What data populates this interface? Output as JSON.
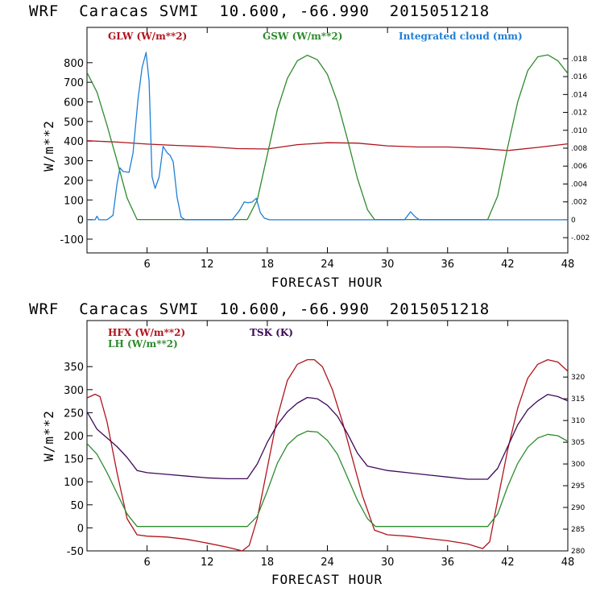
{
  "colors": {
    "glw": "#b0141c",
    "gsw": "#2e8b2e",
    "cloud": "#1f7fd4",
    "hfx": "#b0141c",
    "lh": "#2e8b2e",
    "tsk": "#3d0a5a"
  },
  "chart_data": [
    {
      "type": "line",
      "title": "WRF  Caracas SVMI  10.600, -66.990  2015051218",
      "xlabel": "FORECAST HOUR",
      "ylabel": "W/m**2",
      "xlim": [
        0,
        48
      ],
      "ylim": [
        -170,
        980
      ],
      "y2lim": [
        -0.0037,
        0.0215
      ],
      "xticks": [
        6,
        12,
        18,
        24,
        30,
        36,
        42,
        48
      ],
      "xtick_labels": [
        "6",
        "12",
        "18",
        "24",
        "30",
        "36",
        "42",
        "48"
      ],
      "yticks": [
        -100,
        0,
        100,
        200,
        300,
        400,
        500,
        600,
        700,
        800
      ],
      "ytick_labels": [
        "-100",
        "0",
        "100",
        "200",
        "300",
        "400",
        "500",
        "600",
        "700",
        "800"
      ],
      "y2ticks": [
        -0.002,
        0,
        0.002,
        0.004,
        0.006,
        0.008,
        0.01,
        0.012,
        0.014,
        0.016,
        0.018
      ],
      "y2tick_labels": [
        "-.002",
        "0",
        ".002",
        ".004",
        ".006",
        ".008",
        ".010",
        ".012",
        ".014",
        ".016",
        ".018"
      ],
      "series": [
        {
          "name": "GLW (W/m**2)",
          "key": "glw",
          "axis": "left",
          "x": [
            0,
            3,
            6,
            9,
            12,
            15,
            18,
            21,
            24,
            27,
            30,
            33,
            36,
            39,
            42,
            45,
            48
          ],
          "y": [
            402,
            395,
            385,
            378,
            372,
            362,
            360,
            382,
            392,
            390,
            376,
            370,
            370,
            363,
            352,
            368,
            386
          ]
        },
        {
          "name": "GSW (W/m**2)",
          "key": "gsw",
          "axis": "left",
          "x": [
            0,
            1,
            2,
            3,
            4,
            5,
            16,
            17,
            18,
            19,
            20,
            21,
            22,
            23,
            24,
            25,
            26,
            27,
            28,
            28.7,
            40,
            41,
            42,
            43,
            44,
            45,
            46,
            47,
            48
          ],
          "y": [
            750,
            650,
            480,
            300,
            110,
            0,
            0,
            100,
            330,
            560,
            720,
            810,
            838,
            815,
            740,
            600,
            410,
            210,
            50,
            0,
            0,
            120,
            370,
            600,
            760,
            830,
            840,
            810,
            745
          ]
        },
        {
          "name": "Integrated cloud (mm)",
          "key": "cloud",
          "axis": "right",
          "x": [
            0,
            0.8,
            1,
            1.2,
            2,
            2.6,
            3,
            3.3,
            3.6,
            4.2,
            4.6,
            5.1,
            5.5,
            5.9,
            6.2,
            6.5,
            6.8,
            7.2,
            7.6,
            8.0,
            8.3,
            8.6,
            9.0,
            9.4,
            9.8,
            10.2,
            10.5,
            14.5,
            15.2,
            15.7,
            16.1,
            16.5,
            16.9,
            17.3,
            17.7,
            18.2,
            31.7,
            32.3,
            32.8,
            33.2,
            48
          ],
          "y": [
            0,
            0,
            0.0004,
            0,
            0,
            0.0005,
            0.004,
            0.0058,
            0.0054,
            0.0053,
            0.0075,
            0.0135,
            0.017,
            0.0187,
            0.0155,
            0.0048,
            0.0035,
            0.0048,
            0.0082,
            0.0075,
            0.0072,
            0.0065,
            0.0025,
            0.0003,
            0,
            0,
            0,
            0,
            0.001,
            0.002,
            0.0019,
            0.002,
            0.0024,
            0.0008,
            0.0002,
            0,
            0,
            0.0009,
            0.0003,
            0,
            0
          ]
        }
      ]
    },
    {
      "type": "line",
      "title": "WRF  Caracas SVMI  10.600, -66.990  2015051218",
      "xlabel": "FORECAST HOUR",
      "ylabel": "W/m**2",
      "xlim": [
        0,
        48
      ],
      "ylim": [
        -50,
        450
      ],
      "y2lim": [
        280,
        333
      ],
      "xticks": [
        6,
        12,
        18,
        24,
        30,
        36,
        42,
        48
      ],
      "xtick_labels": [
        "6",
        "12",
        "18",
        "24",
        "30",
        "36",
        "42",
        "48"
      ],
      "yticks": [
        -50,
        0,
        50,
        100,
        150,
        200,
        250,
        300,
        350
      ],
      "ytick_labels": [
        "-50",
        "0",
        "50",
        "100",
        "150",
        "200",
        "250",
        "300",
        "350"
      ],
      "y2ticks": [
        280,
        285,
        290,
        295,
        300,
        305,
        310,
        315,
        320
      ],
      "y2tick_labels": [
        "280",
        "285",
        "290",
        "295",
        "300",
        "305",
        "310",
        "315",
        "320"
      ],
      "series": [
        {
          "name": "HFX (W/m**2)",
          "key": "hfx",
          "axis": "left",
          "x": [
            0,
            0.8,
            1.3,
            2,
            3,
            4,
            5,
            6,
            8,
            10,
            12,
            14,
            15.5,
            16.2,
            17,
            18,
            19,
            20,
            21,
            22,
            22.7,
            23.5,
            24.5,
            25.5,
            26.5,
            27.5,
            28.7,
            30,
            32,
            34,
            36,
            38,
            39.5,
            40.2,
            41,
            42,
            43,
            44,
            45,
            46,
            47,
            48
          ],
          "y": [
            282,
            290,
            285,
            230,
            120,
            20,
            -15,
            -18,
            -20,
            -25,
            -33,
            -42,
            -50,
            -38,
            20,
            130,
            240,
            320,
            355,
            365,
            365,
            350,
            300,
            230,
            150,
            70,
            -5,
            -15,
            -18,
            -23,
            -28,
            -35,
            -45,
            -30,
            60,
            170,
            260,
            325,
            355,
            365,
            360,
            340
          ]
        },
        {
          "name": "LH (W/m**2)",
          "key": "lh",
          "axis": "left",
          "x": [
            0,
            1,
            2,
            3,
            4,
            5,
            16,
            17,
            18,
            19,
            20,
            21,
            22,
            23,
            24,
            25,
            26,
            27,
            28,
            28.8,
            40,
            41,
            42,
            43,
            44,
            45,
            46,
            47,
            48
          ],
          "y": [
            183,
            160,
            120,
            75,
            30,
            3,
            3,
            25,
            80,
            140,
            180,
            200,
            210,
            208,
            190,
            160,
            110,
            60,
            20,
            3,
            3,
            30,
            90,
            140,
            175,
            195,
            203,
            200,
            188
          ]
        },
        {
          "name": "TSK (K)",
          "key": "tsk",
          "axis": "right",
          "x": [
            0,
            1,
            2,
            3,
            4,
            5,
            6,
            8,
            10,
            12,
            14,
            16,
            17,
            18,
            19,
            20,
            21,
            22,
            23,
            24,
            25,
            26,
            27,
            28,
            29,
            30,
            32,
            34,
            36,
            38,
            40,
            41,
            42,
            43,
            44,
            45,
            46,
            47,
            48
          ],
          "y": [
            312,
            308,
            306,
            304,
            301.5,
            298.5,
            298,
            297.6,
            297.2,
            296.8,
            296.6,
            296.6,
            300,
            305,
            309,
            312,
            314,
            315.3,
            315,
            313.5,
            311,
            307,
            302.5,
            299.5,
            299,
            298.5,
            298,
            297.5,
            297,
            296.5,
            296.5,
            299,
            304,
            309,
            312.5,
            314.5,
            316,
            315.5,
            314.5
          ]
        }
      ]
    }
  ]
}
